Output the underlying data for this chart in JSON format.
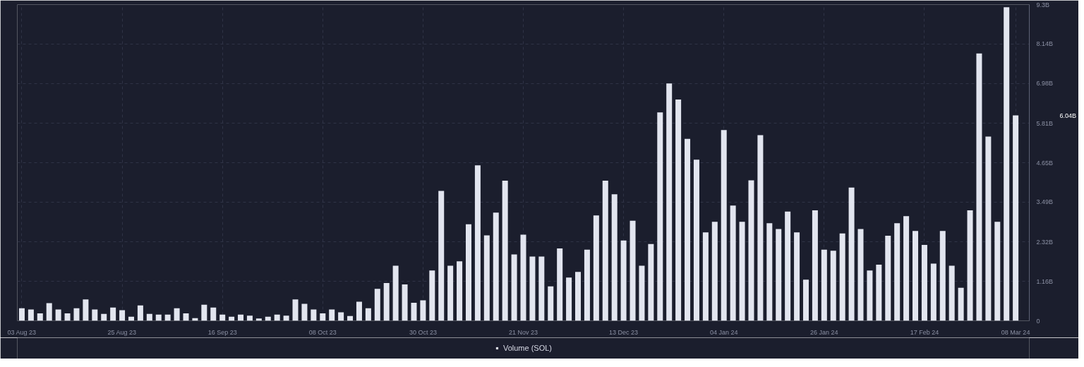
{
  "chart_data": {
    "type": "bar",
    "x": [
      "2023-08-03",
      "2023-08-05",
      "2023-08-07",
      "2023-08-09",
      "2023-08-11",
      "2023-08-13",
      "2023-08-15",
      "2023-08-17",
      "2023-08-19",
      "2023-08-21",
      "2023-08-23",
      "2023-08-25",
      "2023-08-27",
      "2023-08-29",
      "2023-08-31",
      "2023-09-02",
      "2023-09-04",
      "2023-09-06",
      "2023-09-08",
      "2023-09-10",
      "2023-09-12",
      "2023-09-14",
      "2023-09-16",
      "2023-09-18",
      "2023-09-20",
      "2023-09-22",
      "2023-09-24",
      "2023-09-26",
      "2023-09-28",
      "2023-09-30",
      "2023-10-02",
      "2023-10-04",
      "2023-10-06",
      "2023-10-08",
      "2023-10-10",
      "2023-10-12",
      "2023-10-14",
      "2023-10-16",
      "2023-10-18",
      "2023-10-20",
      "2023-10-22",
      "2023-10-24",
      "2023-10-26",
      "2023-10-28",
      "2023-10-30",
      "2023-11-01",
      "2023-11-03",
      "2023-11-05",
      "2023-11-07",
      "2023-11-09",
      "2023-11-11",
      "2023-11-13",
      "2023-11-15",
      "2023-11-17",
      "2023-11-19",
      "2023-11-21",
      "2023-11-23",
      "2023-11-25",
      "2023-11-27",
      "2023-11-29",
      "2023-12-01",
      "2023-12-03",
      "2023-12-05",
      "2023-12-07",
      "2023-12-09",
      "2023-12-11",
      "2023-12-13",
      "2023-12-15",
      "2023-12-17",
      "2023-12-19",
      "2023-12-21",
      "2023-12-23",
      "2023-12-25",
      "2023-12-27",
      "2023-12-29",
      "2023-12-31",
      "2024-01-02",
      "2024-01-04",
      "2024-01-06",
      "2024-01-08",
      "2024-01-10",
      "2024-01-12",
      "2024-01-14",
      "2024-01-16",
      "2024-01-18",
      "2024-01-20",
      "2024-01-22",
      "2024-01-24",
      "2024-01-26",
      "2024-01-28",
      "2024-01-30",
      "2024-02-01",
      "2024-02-03",
      "2024-02-05",
      "2024-02-07",
      "2024-02-09",
      "2024-02-11",
      "2024-02-13",
      "2024-02-15",
      "2024-02-17",
      "2024-02-19",
      "2024-02-21",
      "2024-02-23",
      "2024-02-25",
      "2024-02-27",
      "2024-02-29",
      "2024-03-02",
      "2024-03-04",
      "2024-03-06",
      "2024-03-08"
    ],
    "series": [
      {
        "name": "Volume (SOL)",
        "color": "#e2e5ef",
        "values": [
          0.37,
          0.33,
          0.22,
          0.52,
          0.33,
          0.22,
          0.37,
          0.63,
          0.33,
          0.2,
          0.39,
          0.31,
          0.12,
          0.45,
          0.2,
          0.18,
          0.18,
          0.37,
          0.22,
          0.08,
          0.47,
          0.39,
          0.18,
          0.12,
          0.18,
          0.15,
          0.07,
          0.12,
          0.18,
          0.15,
          0.63,
          0.5,
          0.33,
          0.22,
          0.33,
          0.25,
          0.14,
          0.56,
          0.37,
          0.94,
          1.11,
          1.62,
          1.07,
          0.53,
          0.6,
          1.48,
          3.82,
          1.62,
          1.75,
          2.84,
          4.57,
          2.51,
          3.18,
          4.12,
          1.95,
          2.53,
          1.89,
          1.89,
          1.01,
          2.13,
          1.27,
          1.44,
          2.09,
          3.1,
          4.12,
          3.72,
          2.36,
          2.94,
          1.62,
          2.26,
          6.13,
          6.98,
          6.51,
          5.35,
          4.74,
          2.6,
          2.91,
          5.61,
          3.39,
          2.91,
          4.13,
          5.46,
          2.87,
          2.7,
          3.21,
          2.6,
          1.21,
          3.25,
          2.09,
          2.06,
          2.57,
          3.92,
          2.7,
          1.48,
          1.65,
          2.5,
          2.87,
          3.08,
          2.64,
          2.23,
          1.68,
          2.64,
          1.62,
          0.97,
          3.25,
          7.86,
          5.42,
          2.91,
          9.22,
          6.04
        ]
      }
    ],
    "xlim": [
      "2023-08-02",
      "2024-03-11"
    ],
    "xticks": [
      {
        "value": "2023-08-03",
        "label": "03 Aug 23"
      },
      {
        "value": "2023-08-25",
        "label": "25 Aug 23"
      },
      {
        "value": "2023-09-16",
        "label": "16 Sep 23"
      },
      {
        "value": "2023-10-08",
        "label": "08 Oct 23"
      },
      {
        "value": "2023-10-30",
        "label": "30 Oct 23"
      },
      {
        "value": "2023-11-21",
        "label": "21 Nov 23"
      },
      {
        "value": "2023-12-13",
        "label": "13 Dec 23"
      },
      {
        "value": "2024-01-04",
        "label": "04 Jan 24"
      },
      {
        "value": "2024-01-26",
        "label": "26 Jan 24"
      },
      {
        "value": "2024-02-17",
        "label": "17 Feb 24"
      },
      {
        "value": "2024-03-08",
        "label": "08 Mar 24"
      }
    ],
    "ylim": [
      0,
      9.3
    ],
    "yticks": [
      0,
      {
        "value": 1.16,
        "label": "1.16B"
      },
      {
        "value": 2.32,
        "label": "2.32B"
      },
      {
        "value": 3.49,
        "label": "3.49B"
      },
      {
        "value": 4.65,
        "label": "4.65B"
      },
      {
        "value": 5.81,
        "label": "5.81B"
      },
      {
        "value": 6.98,
        "label": "6.98B"
      },
      {
        "value": 8.14,
        "label": "8.14B"
      },
      {
        "value": 9.3,
        "label": "9.3B"
      }
    ],
    "annotations": [
      "6.04B"
    ],
    "grid": true,
    "legend": "bottom"
  }
}
